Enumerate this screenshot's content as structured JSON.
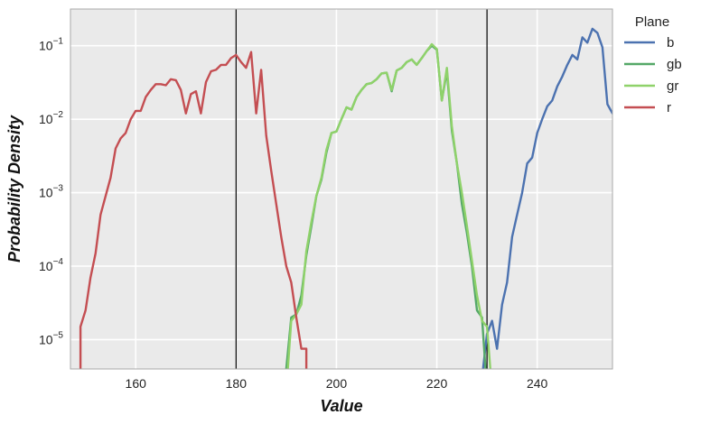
{
  "chart_data": {
    "type": "line",
    "xlabel": "Value",
    "ylabel": "Probability Density",
    "xlim": [
      147,
      255
    ],
    "ylim_log10": [
      -5.4,
      -0.5
    ],
    "yscale": "log",
    "x_ticks": [
      160,
      180,
      200,
      220,
      240
    ],
    "y_ticks": [
      {
        "exp": -5,
        "label_base": "10",
        "label_exp": "−5"
      },
      {
        "exp": -4,
        "label_base": "10",
        "label_exp": "−4"
      },
      {
        "exp": -3,
        "label_base": "10",
        "label_exp": "−3"
      },
      {
        "exp": -2,
        "label_base": "10",
        "label_exp": "−2"
      },
      {
        "exp": -1,
        "label_base": "10",
        "label_exp": "−1"
      }
    ],
    "vlines": [
      180,
      230
    ],
    "grid": true,
    "background": "#EAEAEA",
    "legend": {
      "title": "Plane",
      "placement": "outside-right-top"
    },
    "series": [
      {
        "name": "b",
        "color": "#4C72B0",
        "points": [
          [
            228,
            2e-06
          ],
          [
            229,
            3e-06
          ],
          [
            230,
            1.2e-05
          ],
          [
            231,
            1.8e-05
          ],
          [
            232,
            7.5e-06
          ],
          [
            233,
            3e-05
          ],
          [
            234,
            6e-05
          ],
          [
            235,
            0.00025
          ],
          [
            236,
            0.0005
          ],
          [
            237,
            0.001
          ],
          [
            238,
            0.0025
          ],
          [
            239,
            0.003
          ],
          [
            240,
            0.0065
          ],
          [
            241,
            0.01
          ],
          [
            242,
            0.015
          ],
          [
            243,
            0.018
          ],
          [
            244,
            0.028
          ],
          [
            245,
            0.038
          ],
          [
            246,
            0.055
          ],
          [
            247,
            0.075
          ],
          [
            248,
            0.065
          ],
          [
            249,
            0.13
          ],
          [
            250,
            0.11
          ],
          [
            251,
            0.17
          ],
          [
            252,
            0.15
          ],
          [
            253,
            0.095
          ],
          [
            254,
            0.016
          ],
          [
            255,
            0.012
          ]
        ]
      },
      {
        "name": "gb",
        "color": "#55A868",
        "points": [
          [
            189,
            2e-06
          ],
          [
            190,
            4e-06
          ],
          [
            191,
            2e-05
          ],
          [
            192,
            2.2e-05
          ],
          [
            193,
            4e-05
          ],
          [
            194,
            0.00014
          ],
          [
            195,
            0.00035
          ],
          [
            196,
            0.0009
          ],
          [
            197,
            0.0015
          ],
          [
            198,
            0.0035
          ],
          [
            199,
            0.0065
          ],
          [
            200,
            0.0068
          ],
          [
            201,
            0.01
          ],
          [
            202,
            0.0145
          ],
          [
            203,
            0.0135
          ],
          [
            204,
            0.02
          ],
          [
            205,
            0.025
          ],
          [
            206,
            0.03
          ],
          [
            207,
            0.031
          ],
          [
            208,
            0.035
          ],
          [
            209,
            0.042
          ],
          [
            210,
            0.043
          ],
          [
            211,
            0.024
          ],
          [
            212,
            0.046
          ],
          [
            213,
            0.05
          ],
          [
            214,
            0.06
          ],
          [
            215,
            0.065
          ],
          [
            216,
            0.055
          ],
          [
            217,
            0.068
          ],
          [
            218,
            0.085
          ],
          [
            219,
            0.1
          ],
          [
            220,
            0.088
          ],
          [
            221,
            0.018
          ],
          [
            222,
            0.045
          ],
          [
            223,
            0.007
          ],
          [
            224,
            0.0025
          ],
          [
            225,
            0.0007
          ],
          [
            226,
            0.00028
          ],
          [
            227,
            0.0001
          ],
          [
            228,
            2.5e-05
          ],
          [
            229,
            2e-05
          ],
          [
            230,
            2e-06
          ]
        ]
      },
      {
        "name": "gr",
        "color": "#8FD26A",
        "points": [
          [
            190,
            2e-06
          ],
          [
            191,
            1.8e-05
          ],
          [
            192,
            2.2e-05
          ],
          [
            193,
            3e-05
          ],
          [
            194,
            0.00016
          ],
          [
            195,
            0.0004
          ],
          [
            196,
            0.0009
          ],
          [
            197,
            0.0016
          ],
          [
            198,
            0.0038
          ],
          [
            199,
            0.0065
          ],
          [
            200,
            0.0068
          ],
          [
            201,
            0.01
          ],
          [
            202,
            0.0145
          ],
          [
            203,
            0.0135
          ],
          [
            204,
            0.02
          ],
          [
            205,
            0.025
          ],
          [
            206,
            0.03
          ],
          [
            207,
            0.031
          ],
          [
            208,
            0.035
          ],
          [
            209,
            0.042
          ],
          [
            210,
            0.043
          ],
          [
            211,
            0.025
          ],
          [
            212,
            0.046
          ],
          [
            213,
            0.05
          ],
          [
            214,
            0.06
          ],
          [
            215,
            0.065
          ],
          [
            216,
            0.055
          ],
          [
            217,
            0.068
          ],
          [
            218,
            0.085
          ],
          [
            219,
            0.105
          ],
          [
            220,
            0.09
          ],
          [
            221,
            0.018
          ],
          [
            222,
            0.05
          ],
          [
            223,
            0.008
          ],
          [
            224,
            0.0025
          ],
          [
            225,
            0.001
          ],
          [
            226,
            0.00035
          ],
          [
            227,
            0.00012
          ],
          [
            228,
            4e-05
          ],
          [
            229,
            1.8e-05
          ],
          [
            230,
            1.5e-05
          ],
          [
            231,
            2e-06
          ]
        ]
      },
      {
        "name": "r",
        "color": "#C44E52",
        "points": [
          [
            149,
            2e-06
          ],
          [
            149,
            1.5e-05
          ],
          [
            150,
            2.5e-05
          ],
          [
            151,
            7e-05
          ],
          [
            152,
            0.00015
          ],
          [
            153,
            0.0005
          ],
          [
            154,
            0.0009
          ],
          [
            155,
            0.0016
          ],
          [
            156,
            0.004
          ],
          [
            157,
            0.0055
          ],
          [
            158,
            0.0065
          ],
          [
            159,
            0.01
          ],
          [
            160,
            0.013
          ],
          [
            161,
            0.013
          ],
          [
            162,
            0.02
          ],
          [
            163,
            0.025
          ],
          [
            164,
            0.03
          ],
          [
            165,
            0.03
          ],
          [
            166,
            0.029
          ],
          [
            167,
            0.035
          ],
          [
            168,
            0.034
          ],
          [
            169,
            0.025
          ],
          [
            170,
            0.012
          ],
          [
            171,
            0.022
          ],
          [
            172,
            0.024
          ],
          [
            173,
            0.012
          ],
          [
            174,
            0.032
          ],
          [
            175,
            0.045
          ],
          [
            176,
            0.047
          ],
          [
            177,
            0.055
          ],
          [
            178,
            0.055
          ],
          [
            179,
            0.068
          ],
          [
            180,
            0.075
          ],
          [
            181,
            0.06
          ],
          [
            182,
            0.05
          ],
          [
            183,
            0.082
          ],
          [
            184,
            0.012
          ],
          [
            185,
            0.047
          ],
          [
            186,
            0.006
          ],
          [
            187,
            0.002
          ],
          [
            188,
            0.0007
          ],
          [
            189,
            0.00025
          ],
          [
            190,
            0.0001
          ],
          [
            191,
            6e-05
          ],
          [
            192,
            2e-05
          ],
          [
            193,
            7.5e-06
          ],
          [
            194,
            7.5e-06
          ],
          [
            194,
            2e-06
          ]
        ]
      }
    ]
  }
}
